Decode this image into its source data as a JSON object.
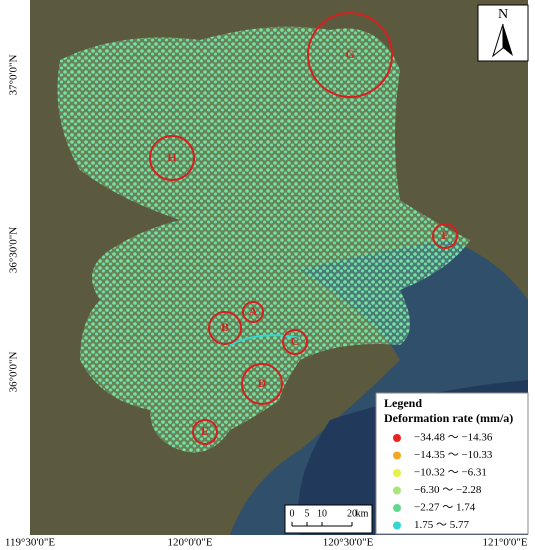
{
  "map": {
    "north_label": "N",
    "lon_labels": [
      "119°30'0\"E",
      "120°0'0\"E",
      "120°30'0\"E",
      "121°0'0\"E"
    ],
    "lat_labels": [
      "37°0'0\"N",
      "36°30'0\"N",
      "36°0'0\"N"
    ],
    "sites": [
      "A",
      "B",
      "C",
      "D",
      "E",
      "F",
      "G",
      "H"
    ],
    "scale_bar": {
      "ticks": [
        "0",
        "5",
        "10",
        "20"
      ],
      "unit": "km"
    },
    "legend": {
      "title": "Legend",
      "subtitle": "Deformation rate (mm/a)",
      "items": [
        {
          "label": "−34.48 ～ −14.36",
          "color": "#e8231e"
        },
        {
          "label": "−14.35 ～ −10.33",
          "color": "#f5a623"
        },
        {
          "label": "−10.32 ～ −6.31",
          "color": "#e6f04a"
        },
        {
          "label": "−6.30 ～ −2.28",
          "color": "#a8e67a"
        },
        {
          "label": "−2.27 ～ 1.74",
          "color": "#5fd98e"
        },
        {
          "label": "1.75 ～ 5.77",
          "color": "#35d6d0"
        }
      ]
    }
  }
}
